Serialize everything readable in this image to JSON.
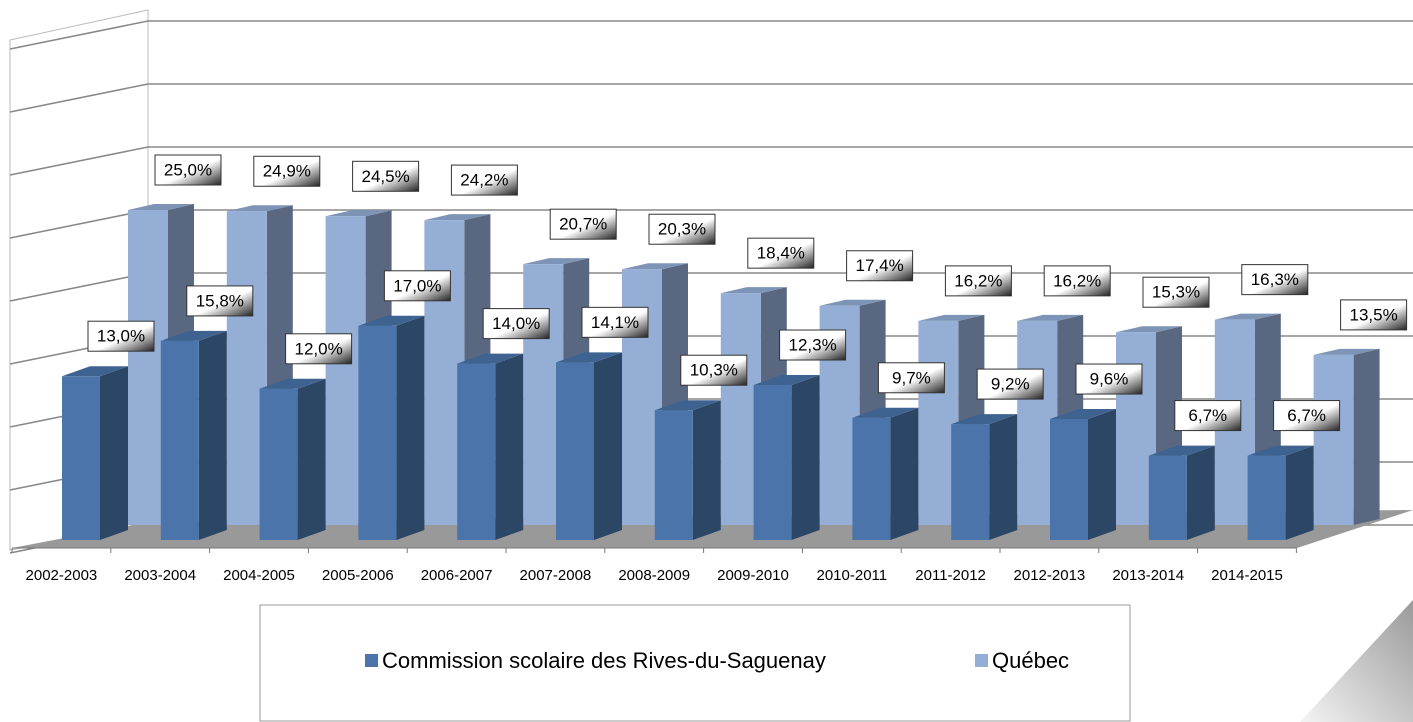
{
  "chart_data": {
    "type": "bar3d",
    "categories": [
      "2002-2003",
      "2003-2004",
      "2004-2005",
      "2005-2006",
      "2006-2007",
      "2007-2008",
      "2008-2009",
      "2009-2010",
      "2010-2011",
      "2011-2012",
      "2012-2013",
      "2013-2014",
      "2014-2015"
    ],
    "series": [
      {
        "name": "Commission scolaire des Rives-du-Saguenay",
        "color": "#4a74aa",
        "values": [
          13.0,
          15.8,
          12.0,
          17.0,
          14.0,
          14.1,
          10.3,
          12.3,
          9.7,
          9.2,
          9.6,
          6.7,
          6.7
        ],
        "value_labels": [
          "13,0%",
          "15,8%",
          "12,0%",
          "17,0%",
          "14,0%",
          "14,1%",
          "10,3%",
          "12,3%",
          "9,7%",
          "9,2%",
          "9,6%",
          "6,7%",
          "6,7%"
        ]
      },
      {
        "name": "Québec",
        "color": "#94aed6",
        "values": [
          25.0,
          24.9,
          24.5,
          24.2,
          20.7,
          20.3,
          18.4,
          17.4,
          16.2,
          16.2,
          15.3,
          16.3,
          13.5
        ],
        "value_labels": [
          "25,0%",
          "24,9%",
          "24,5%",
          "24,2%",
          "20,7%",
          "20,3%",
          "18,4%",
          "17,4%",
          "16,2%",
          "16,2%",
          "15,3%",
          "16,3%",
          "13,5%"
        ]
      }
    ],
    "ylim": [
      0,
      40
    ],
    "yticks": [
      0,
      5,
      10,
      15,
      20,
      25,
      30,
      35,
      40
    ],
    "grid": true
  }
}
